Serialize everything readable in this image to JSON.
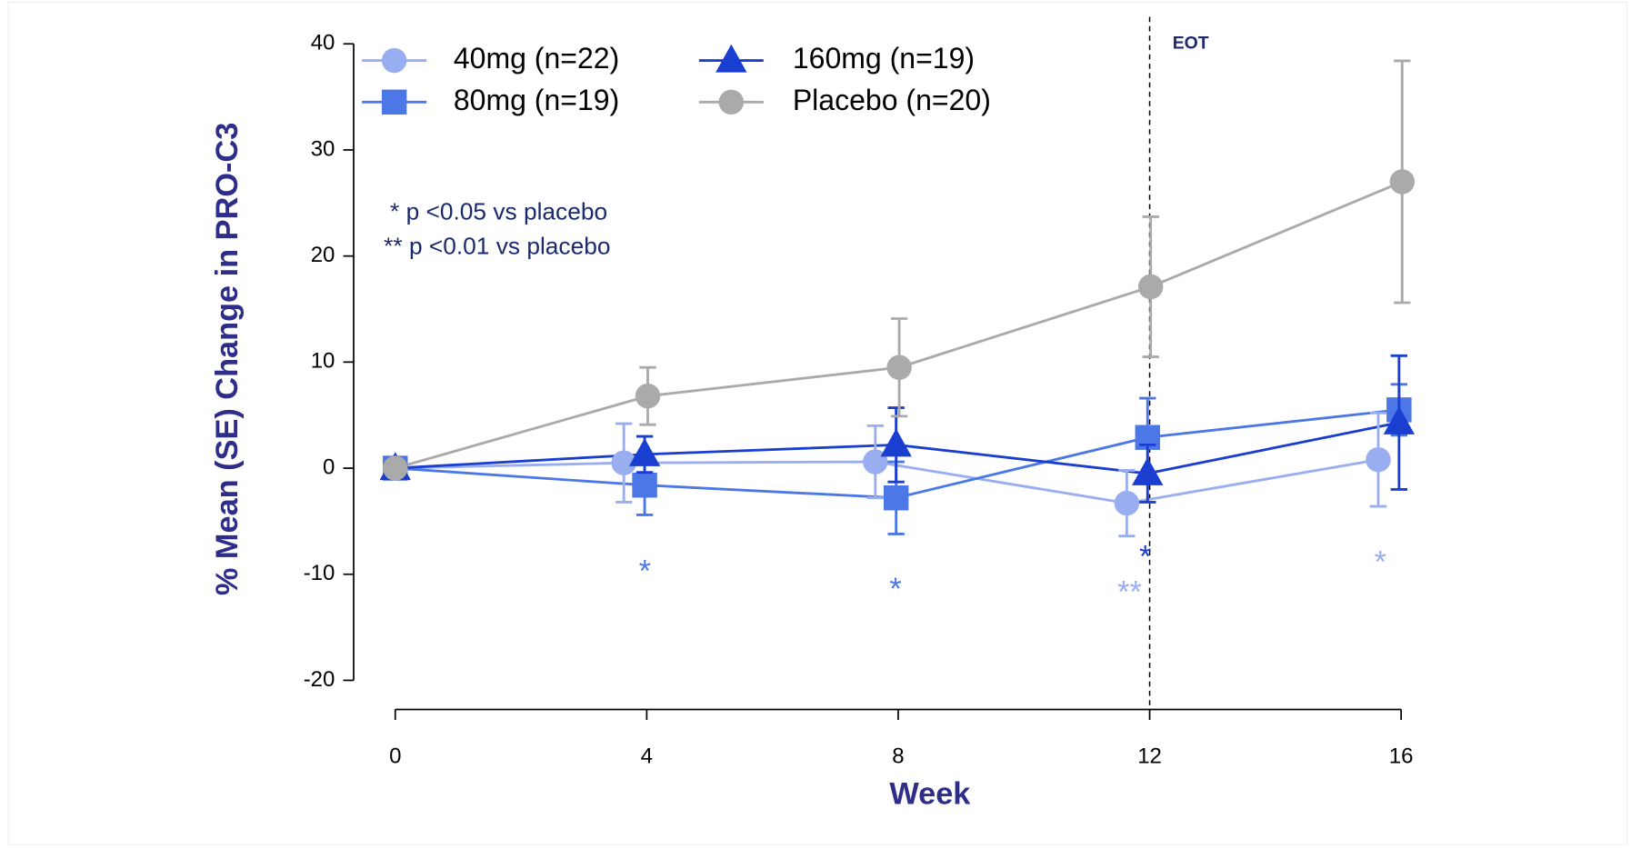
{
  "chart_data": {
    "type": "line",
    "y_label": "% Mean (SE) Change in PRO-C3",
    "x_label": "Week",
    "x": [
      0,
      4,
      8,
      12,
      16
    ],
    "xlim": [
      0,
      16
    ],
    "xticks": [
      0,
      4,
      8,
      12,
      16
    ],
    "ylim": [
      -20,
      40
    ],
    "yticks": [
      -20,
      -10,
      0,
      10,
      20,
      30,
      40
    ],
    "series": [
      {
        "name": "40mg (n=22)",
        "color": "#99aef0",
        "marker": "circle",
        "values": [
          0,
          0.5,
          0.6,
          -3.3,
          0.8
        ],
        "errors": [
          0.5,
          3.7,
          3.4,
          3.1,
          4.4
        ]
      },
      {
        "name": "80mg (n=19)",
        "color": "#4b78e6",
        "marker": "square",
        "values": [
          0,
          -1.6,
          -2.8,
          2.9,
          5.5
        ],
        "errors": [
          0.5,
          2.8,
          3.4,
          3.7,
          2.4
        ]
      },
      {
        "name": "160mg (n=19)",
        "color": "#1a3ed0",
        "marker": "triangle",
        "values": [
          0,
          1.3,
          2.2,
          -0.5,
          4.3
        ],
        "errors": [
          0.5,
          1.7,
          3.5,
          2.7,
          6.3
        ]
      },
      {
        "name": "Placebo (n=20)",
        "color": "#aaaaaa",
        "marker": "circle",
        "values": [
          0,
          6.8,
          9.5,
          17.1,
          27.0
        ],
        "errors": [
          0.5,
          2.7,
          4.6,
          6.6,
          11.4
        ]
      }
    ],
    "eot": {
      "label": "EOT",
      "x": 12
    },
    "notes": [
      "*  p <0.05 vs placebo",
      "**  p <0.01 vs placebo"
    ],
    "significance": [
      {
        "text": "*",
        "color": "#4b78e6"
      },
      {
        "text": "*",
        "color": "#4b78e6"
      },
      {
        "text": "**",
        "color": "#99aef0"
      },
      {
        "text": "*",
        "color": "#1a3ed0"
      },
      {
        "text": "*",
        "color": "#99aef0"
      }
    ]
  }
}
